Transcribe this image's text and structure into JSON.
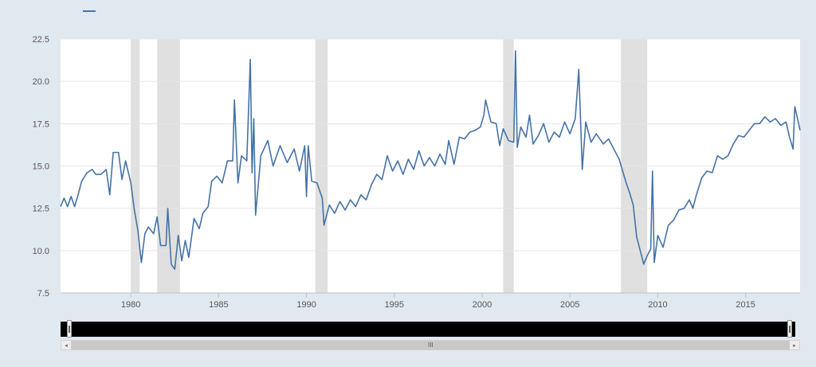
{
  "legend": {
    "label": "",
    "color": "#4572a7"
  },
  "colors": {
    "plot_bg": "#ffffff",
    "page_bg": "#e1e9f0",
    "grid": "#e6e6e6",
    "recession": "#e0e0e0",
    "line": "#4572a7"
  },
  "navigator": {
    "grip": "III",
    "left_arrow": "◂",
    "right_arrow": "▸"
  },
  "chart_data": {
    "type": "line",
    "title": "",
    "xlabel": "",
    "ylabel": "",
    "xlim": [
      1976.0,
      2018.1
    ],
    "ylim": [
      7.5,
      22.5
    ],
    "y_ticks": [
      7.5,
      10.0,
      12.5,
      15.0,
      17.5,
      20.0,
      22.5
    ],
    "y_tick_labels": [
      "7.5",
      "10.0",
      "12.5",
      "15.0",
      "17.5",
      "20.0",
      "22.5"
    ],
    "x_ticks": [
      1980,
      1985,
      1990,
      1995,
      2000,
      2005,
      2010,
      2015
    ],
    "x_tick_labels": [
      "1980",
      "1985",
      "1990",
      "1995",
      "2000",
      "2005",
      "2010",
      "2015"
    ],
    "grid": true,
    "recessions": [
      [
        1980.0,
        1980.5
      ],
      [
        1981.5,
        1982.8
      ],
      [
        1990.5,
        1991.2
      ],
      [
        2001.2,
        2001.8
      ],
      [
        2007.9,
        2009.4
      ]
    ],
    "series": [
      {
        "points": [
          [
            1976.0,
            12.6
          ],
          [
            1976.2,
            13.1
          ],
          [
            1976.4,
            12.6
          ],
          [
            1976.6,
            13.2
          ],
          [
            1976.8,
            12.6
          ],
          [
            1977.0,
            13.3
          ],
          [
            1977.2,
            14.1
          ],
          [
            1977.5,
            14.6
          ],
          [
            1977.8,
            14.8
          ],
          [
            1978.0,
            14.5
          ],
          [
            1978.3,
            14.5
          ],
          [
            1978.6,
            14.8
          ],
          [
            1978.8,
            13.3
          ],
          [
            1979.0,
            15.8
          ],
          [
            1979.3,
            15.8
          ],
          [
            1979.5,
            14.2
          ],
          [
            1979.7,
            15.3
          ],
          [
            1980.0,
            14.0
          ],
          [
            1980.2,
            12.4
          ],
          [
            1980.4,
            11.2
          ],
          [
            1980.6,
            9.3
          ],
          [
            1980.8,
            11.0
          ],
          [
            1981.0,
            11.4
          ],
          [
            1981.3,
            11.0
          ],
          [
            1981.5,
            12.0
          ],
          [
            1981.7,
            10.3
          ],
          [
            1982.0,
            10.3
          ],
          [
            1982.1,
            12.5
          ],
          [
            1982.3,
            9.2
          ],
          [
            1982.5,
            8.9
          ],
          [
            1982.7,
            10.9
          ],
          [
            1982.9,
            9.4
          ],
          [
            1983.1,
            10.6
          ],
          [
            1983.3,
            9.6
          ],
          [
            1983.6,
            11.9
          ],
          [
            1983.9,
            11.3
          ],
          [
            1984.1,
            12.2
          ],
          [
            1984.4,
            12.6
          ],
          [
            1984.6,
            14.1
          ],
          [
            1984.9,
            14.4
          ],
          [
            1985.2,
            14.0
          ],
          [
            1985.5,
            15.3
          ],
          [
            1985.8,
            15.3
          ],
          [
            1985.9,
            18.9
          ],
          [
            1986.1,
            14.0
          ],
          [
            1986.3,
            15.6
          ],
          [
            1986.6,
            15.3
          ],
          [
            1986.8,
            21.3
          ],
          [
            1986.9,
            14.6
          ],
          [
            1987.0,
            17.8
          ],
          [
            1987.1,
            12.1
          ],
          [
            1987.4,
            15.6
          ],
          [
            1987.8,
            16.5
          ],
          [
            1988.1,
            15.0
          ],
          [
            1988.5,
            16.2
          ],
          [
            1988.9,
            15.2
          ],
          [
            1989.3,
            16.0
          ],
          [
            1989.6,
            14.7
          ],
          [
            1989.9,
            16.2
          ],
          [
            1990.0,
            13.2
          ],
          [
            1990.1,
            16.2
          ],
          [
            1990.3,
            14.1
          ],
          [
            1990.6,
            14.0
          ],
          [
            1990.9,
            13.1
          ],
          [
            1991.0,
            11.5
          ],
          [
            1991.3,
            12.7
          ],
          [
            1991.6,
            12.2
          ],
          [
            1991.9,
            12.9
          ],
          [
            1992.2,
            12.4
          ],
          [
            1992.5,
            13.0
          ],
          [
            1992.8,
            12.6
          ],
          [
            1993.1,
            13.3
          ],
          [
            1993.4,
            13.0
          ],
          [
            1993.7,
            13.9
          ],
          [
            1994.0,
            14.5
          ],
          [
            1994.3,
            14.2
          ],
          [
            1994.6,
            15.6
          ],
          [
            1994.9,
            14.7
          ],
          [
            1995.2,
            15.3
          ],
          [
            1995.5,
            14.5
          ],
          [
            1995.8,
            15.4
          ],
          [
            1996.1,
            14.8
          ],
          [
            1996.4,
            15.9
          ],
          [
            1996.7,
            15.0
          ],
          [
            1997.0,
            15.5
          ],
          [
            1997.3,
            15.0
          ],
          [
            1997.6,
            15.7
          ],
          [
            1997.9,
            15.1
          ],
          [
            1998.1,
            16.5
          ],
          [
            1998.4,
            15.1
          ],
          [
            1998.7,
            16.7
          ],
          [
            1999.0,
            16.6
          ],
          [
            1999.3,
            17.0
          ],
          [
            1999.6,
            17.1
          ],
          [
            1999.9,
            17.3
          ],
          [
            2000.1,
            18.0
          ],
          [
            2000.2,
            18.9
          ],
          [
            2000.5,
            17.6
          ],
          [
            2000.8,
            17.5
          ],
          [
            2001.0,
            16.2
          ],
          [
            2001.2,
            17.2
          ],
          [
            2001.5,
            16.5
          ],
          [
            2001.8,
            16.4
          ],
          [
            2001.9,
            21.8
          ],
          [
            2002.0,
            16.1
          ],
          [
            2002.2,
            17.3
          ],
          [
            2002.5,
            16.7
          ],
          [
            2002.7,
            18.0
          ],
          [
            2002.9,
            16.3
          ],
          [
            2003.2,
            16.8
          ],
          [
            2003.5,
            17.5
          ],
          [
            2003.8,
            16.4
          ],
          [
            2004.1,
            17.0
          ],
          [
            2004.4,
            16.7
          ],
          [
            2004.7,
            17.6
          ],
          [
            2005.0,
            16.9
          ],
          [
            2005.3,
            17.8
          ],
          [
            2005.5,
            20.7
          ],
          [
            2005.7,
            14.8
          ],
          [
            2005.9,
            17.6
          ],
          [
            2006.2,
            16.4
          ],
          [
            2006.5,
            16.9
          ],
          [
            2006.9,
            16.3
          ],
          [
            2007.2,
            16.6
          ],
          [
            2007.5,
            16.0
          ],
          [
            2007.8,
            15.4
          ],
          [
            2008.0,
            14.7
          ],
          [
            2008.2,
            14.0
          ],
          [
            2008.4,
            13.4
          ],
          [
            2008.6,
            12.7
          ],
          [
            2008.8,
            10.8
          ],
          [
            2009.0,
            10.0
          ],
          [
            2009.2,
            9.2
          ],
          [
            2009.4,
            9.7
          ],
          [
            2009.6,
            10.1
          ],
          [
            2009.7,
            14.7
          ],
          [
            2009.8,
            9.3
          ],
          [
            2010.0,
            10.9
          ],
          [
            2010.3,
            10.2
          ],
          [
            2010.6,
            11.5
          ],
          [
            2010.9,
            11.8
          ],
          [
            2011.2,
            12.4
          ],
          [
            2011.5,
            12.5
          ],
          [
            2011.8,
            13.0
          ],
          [
            2012.0,
            12.5
          ],
          [
            2012.2,
            13.3
          ],
          [
            2012.5,
            14.3
          ],
          [
            2012.8,
            14.7
          ],
          [
            2013.1,
            14.6
          ],
          [
            2013.4,
            15.6
          ],
          [
            2013.7,
            15.4
          ],
          [
            2014.0,
            15.6
          ],
          [
            2014.3,
            16.3
          ],
          [
            2014.6,
            16.8
          ],
          [
            2014.9,
            16.7
          ],
          [
            2015.2,
            17.1
          ],
          [
            2015.5,
            17.5
          ],
          [
            2015.8,
            17.5
          ],
          [
            2016.1,
            17.9
          ],
          [
            2016.4,
            17.6
          ],
          [
            2016.7,
            17.8
          ],
          [
            2017.0,
            17.4
          ],
          [
            2017.3,
            17.6
          ],
          [
            2017.5,
            16.7
          ],
          [
            2017.7,
            16.0
          ],
          [
            2017.8,
            18.5
          ],
          [
            2018.0,
            17.6
          ],
          [
            2018.1,
            17.1
          ]
        ]
      }
    ]
  }
}
